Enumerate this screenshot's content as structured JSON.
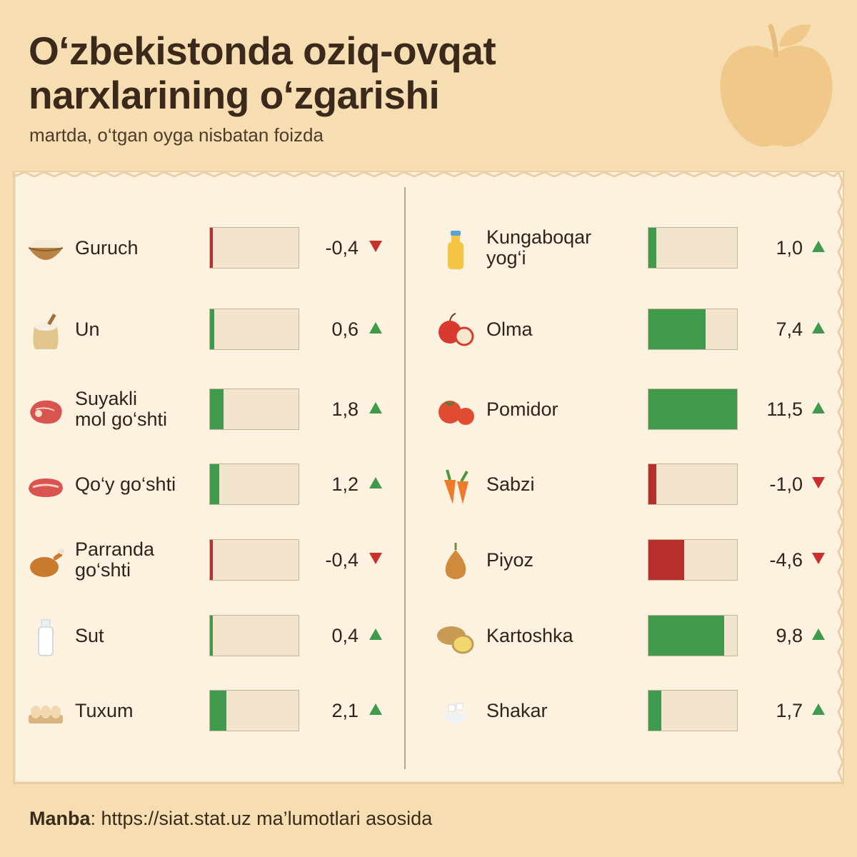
{
  "title": "O‘zbekistonda oziq-ovqat\nnarxlarining o‘zgarishi",
  "subtitle": "martda, o‘tgan oyga nisbatan foizda",
  "source": {
    "label": "Manba",
    "text": ": https://siat.stat.uz ma’lumotlari asosida"
  },
  "colors": {
    "positive": "#3f9a4e",
    "negative": "#b8302e",
    "track": "#f2e4cd"
  },
  "chart_data": {
    "type": "bar",
    "max_abs": 11.5,
    "columns": [
      [
        {
          "label": "Guruch",
          "value": -0.4,
          "display": "-0,4",
          "icon": "rice-bowl-icon"
        },
        {
          "label": "Un",
          "value": 0.6,
          "display": "0,6",
          "icon": "flour-sack-icon"
        },
        {
          "label": "Suyakli\nmol go‘shti",
          "value": 1.8,
          "display": "1,8",
          "icon": "beef-steak-icon"
        },
        {
          "label": "Qo‘y go‘shti",
          "value": 1.2,
          "display": "1,2",
          "icon": "mutton-icon"
        },
        {
          "label": "Parranda\ngo‘shti",
          "value": -0.4,
          "display": "-0,4",
          "icon": "roast-chicken-icon"
        },
        {
          "label": "Sut",
          "value": 0.4,
          "display": "0,4",
          "icon": "milk-bottle-icon"
        },
        {
          "label": "Tuxum",
          "value": 2.1,
          "display": "2,1",
          "icon": "eggs-icon"
        }
      ],
      [
        {
          "label": "Kungaboqar\nyog‘i",
          "value": 1.0,
          "display": "1,0",
          "icon": "oil-bottle-icon"
        },
        {
          "label": "Olma",
          "value": 7.4,
          "display": "7,4",
          "icon": "apple-icon"
        },
        {
          "label": "Pomidor",
          "value": 11.5,
          "display": "11,5",
          "icon": "tomato-icon"
        },
        {
          "label": "Sabzi",
          "value": -1.0,
          "display": "-1,0",
          "icon": "carrot-icon"
        },
        {
          "label": "Piyoz",
          "value": -4.6,
          "display": "-4,6",
          "icon": "onion-icon"
        },
        {
          "label": "Kartoshka",
          "value": 9.8,
          "display": "9,8",
          "icon": "potato-icon"
        },
        {
          "label": "Shakar",
          "value": 1.7,
          "display": "1,7",
          "icon": "sugar-bowl-icon"
        }
      ]
    ]
  }
}
